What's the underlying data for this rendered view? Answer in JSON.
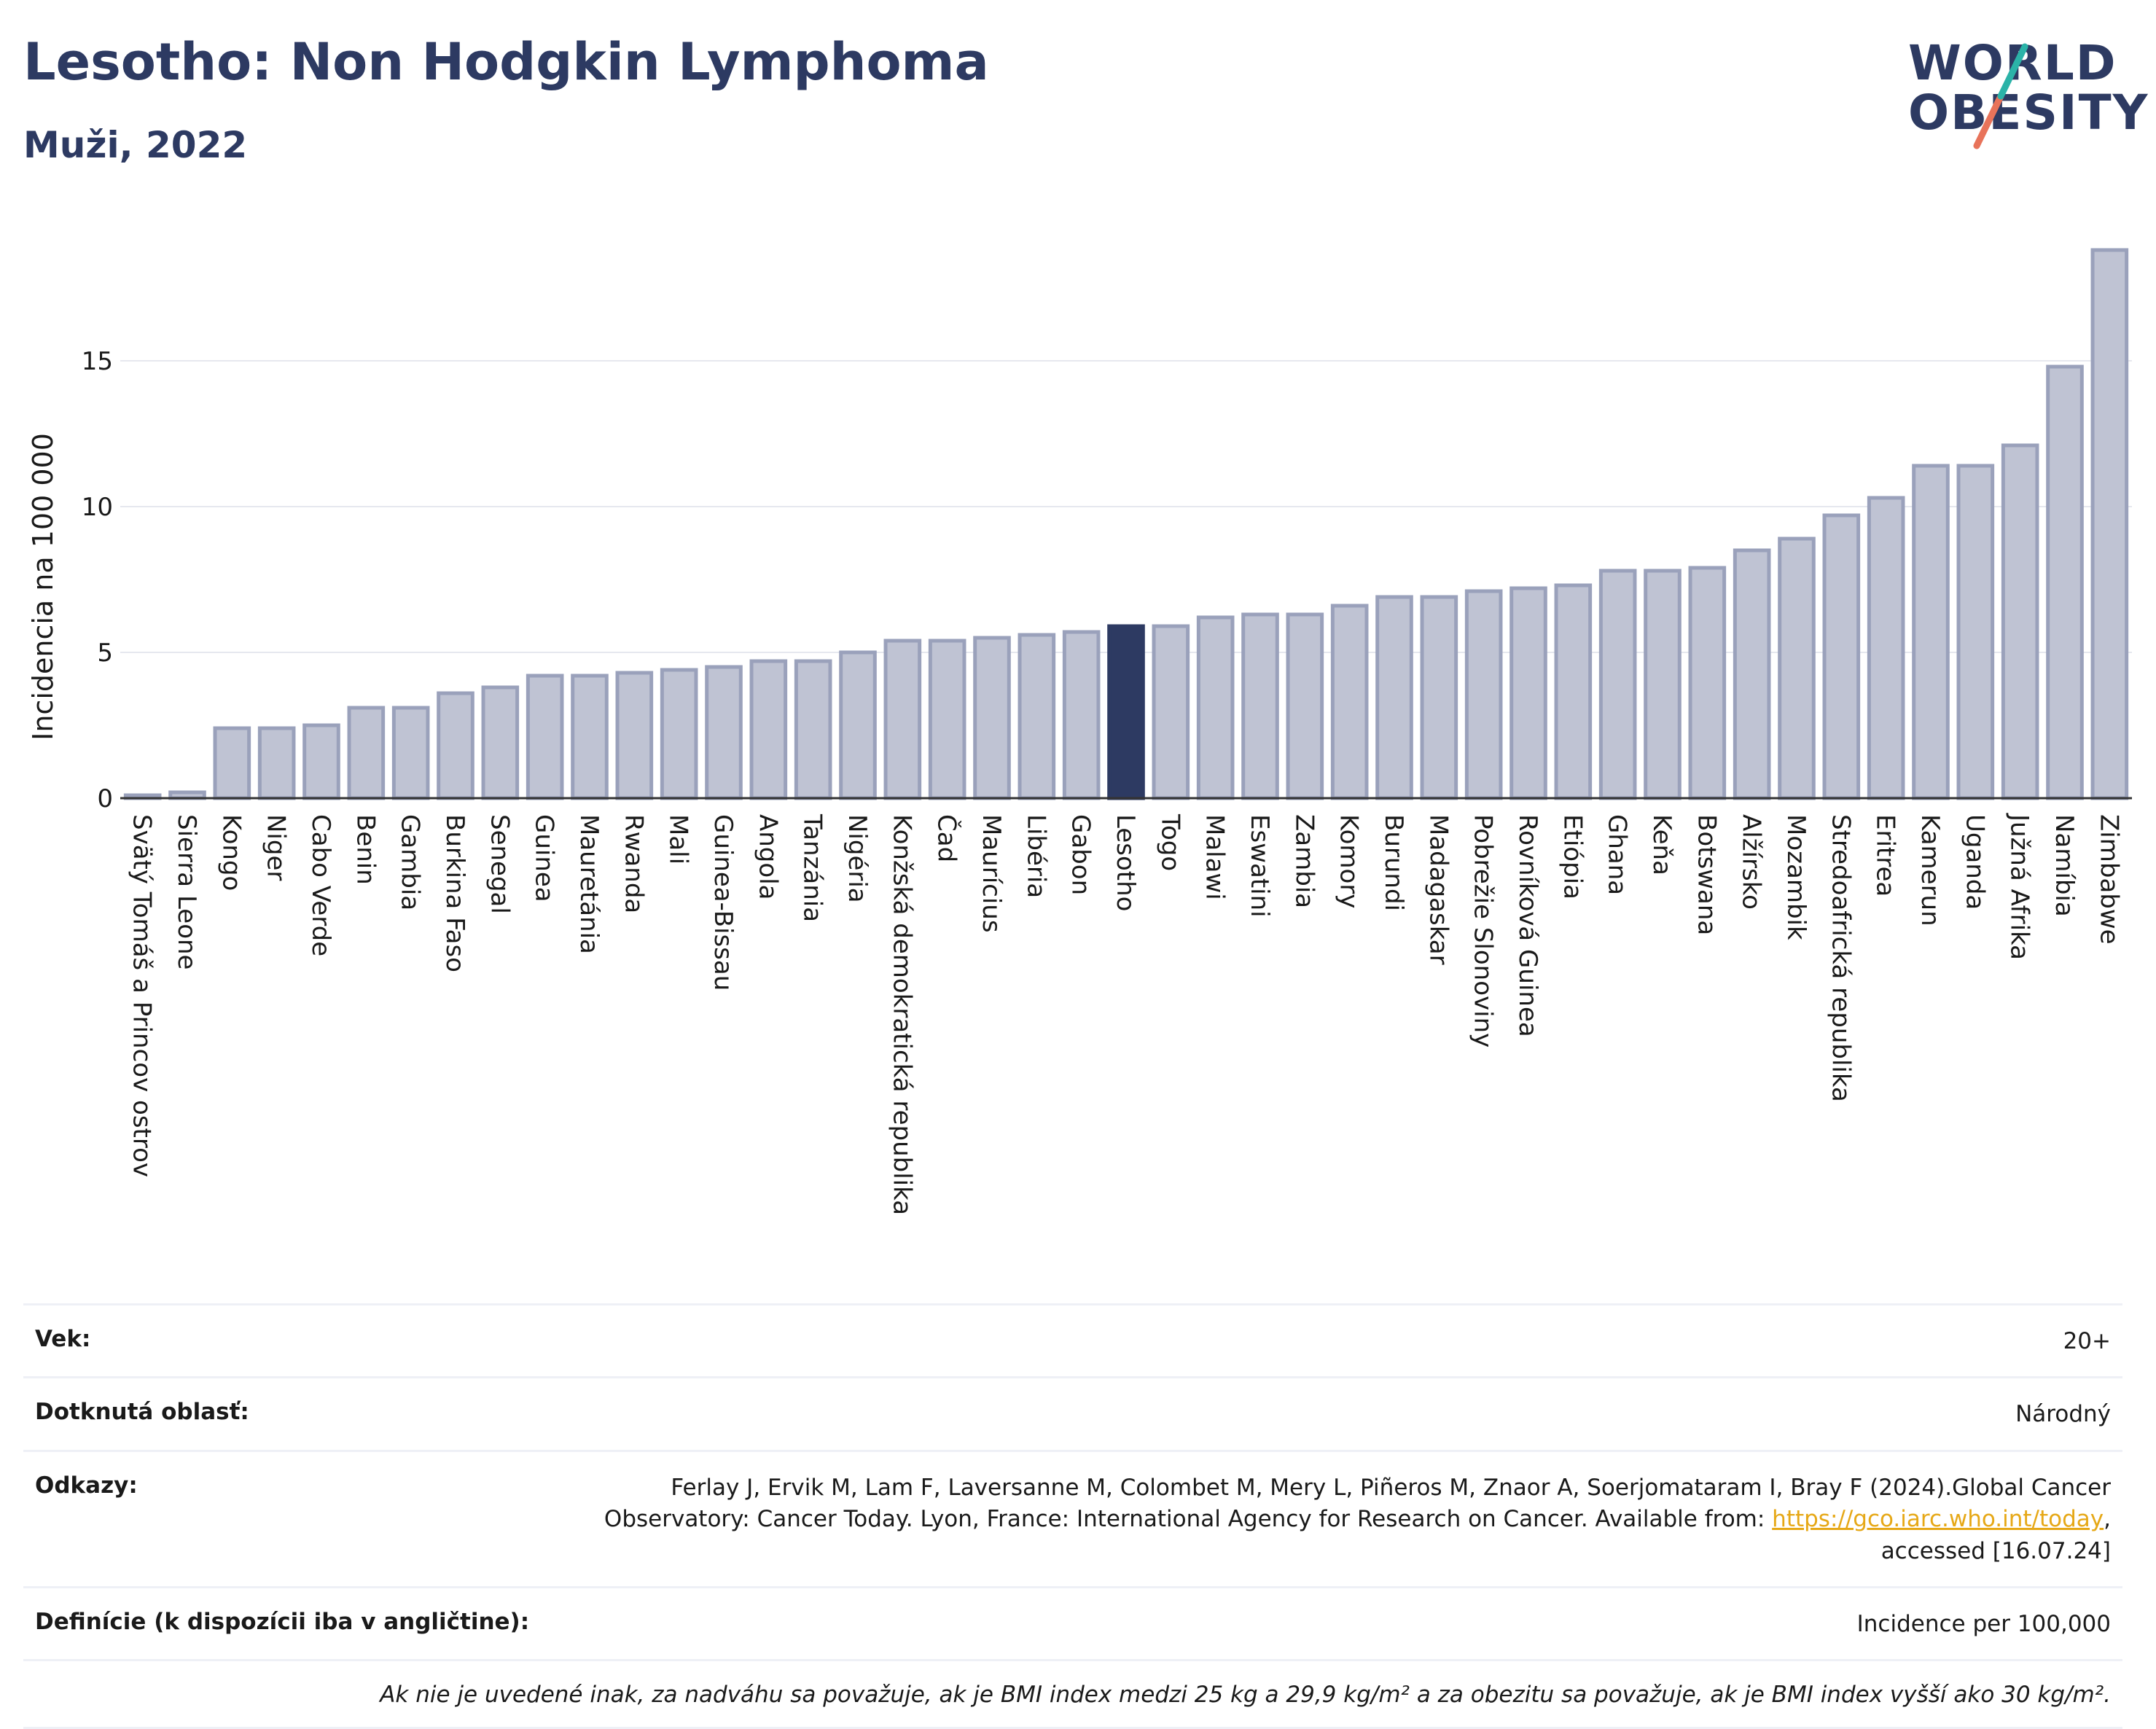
{
  "header": {
    "title": "Lesotho: Non Hodgkin Lymphoma",
    "subtitle": "Muži, 2022"
  },
  "logo": {
    "line1": "WORLD",
    "line2": "OBESITY"
  },
  "colors": {
    "bar": "#bfc3d3",
    "bar_border": "#9aa1bb",
    "highlight": "#2d3a62",
    "grid": "#e6e8ef",
    "text": "#1a1a1a"
  },
  "chart_data": {
    "type": "bar",
    "ylabel": "Incidencia na 100 000",
    "xlabel": "",
    "ylim": [
      0,
      19.5
    ],
    "yticks": [
      0,
      5,
      10,
      15
    ],
    "highlight": "Lesotho",
    "grid": true,
    "categories": [
      "Svätý Tomáš a Princov ostrov",
      "Sierra Leone",
      "Kongo",
      "Niger",
      "Cabo Verde",
      "Benin",
      "Gambia",
      "Burkina Faso",
      "Senegal",
      "Guinea",
      "Mauretánia",
      "Rwanda",
      "Mali",
      "Guinea-Bissau",
      "Angola",
      "Tanzánia",
      "Nigéria",
      "Konžská demokratická republika",
      "Čad",
      "Maurícius",
      "Libéria",
      "Gabon",
      "Lesotho",
      "Togo",
      "Malawi",
      "Eswatini",
      "Zambia",
      "Komory",
      "Burundi",
      "Madagaskar",
      "Pobrežie Slonoviny",
      "Rovníková Guinea",
      "Etiópia",
      "Ghana",
      "Keňa",
      "Botswana",
      "Alžírsko",
      "Mozambik",
      "Stredoafrická republika",
      "Eritrea",
      "Kamerun",
      "Uganda",
      "Južná Afrika",
      "Namíbia",
      "Zimbabwe"
    ],
    "values": [
      0.1,
      0.2,
      2.4,
      2.4,
      2.5,
      3.1,
      3.1,
      3.6,
      3.8,
      4.2,
      4.2,
      4.3,
      4.4,
      4.5,
      4.7,
      4.7,
      5.0,
      5.4,
      5.4,
      5.5,
      5.6,
      5.7,
      5.9,
      5.9,
      6.2,
      6.3,
      6.3,
      6.6,
      6.9,
      6.9,
      7.1,
      7.2,
      7.3,
      7.8,
      7.8,
      7.9,
      8.5,
      8.9,
      9.7,
      10.3,
      11.4,
      11.4,
      12.1,
      14.8,
      18.8
    ]
  },
  "info": {
    "age_label": "Vek:",
    "age_value": "20+",
    "area_label": "Dotknutá oblasť:",
    "area_value": "Národný",
    "refs_label": "Odkazy:",
    "refs_text": "Ferlay J, Ervik M, Lam F, Laversanne M, Colombet M, Mery L, Piñeros M, Znaor A, Soerjomataram I, Bray F (2024).Global Cancer Observatory: Cancer Today. Lyon, France: International Agency for Research on Cancer. Available from: ",
    "refs_link": "https://gco.iarc.who.int/today",
    "refs_tail": ", accessed [16.07.24]",
    "def_label": "Definície (k dispozícii iba v angličtine):",
    "def_value": "Incidence per 100,000",
    "note": "Ak nie je uvedené inak, za nadváhu sa považuje, ak je BMI index medzi 25 kg a 29,9 kg/m² a za obezitu sa považuje, ak je BMI index vyšší ako 30 kg/m²."
  }
}
